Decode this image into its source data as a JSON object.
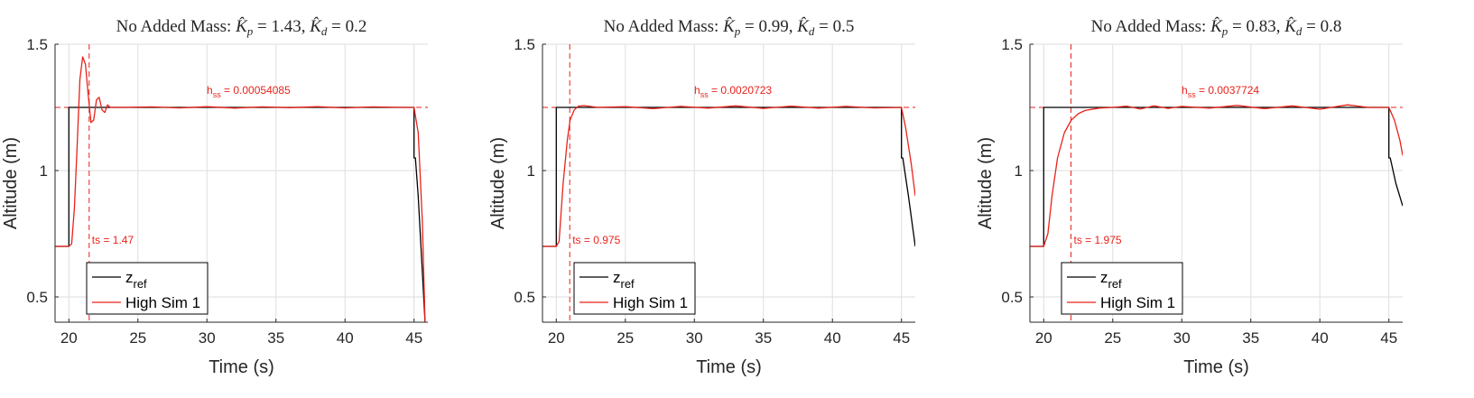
{
  "colors": {
    "reference": "#000000",
    "simulation": "#e8231b",
    "grid": "#dedede",
    "axis": "#262626"
  },
  "chart_data": [
    {
      "type": "line",
      "title": {
        "prefix": "No Added Mass: ",
        "kp_value": "1.43",
        "kd_value": "0.2"
      },
      "xlabel": "Time (s)",
      "ylabel": "Altitude (m)",
      "xlim": [
        19,
        46
      ],
      "ylim": [
        0.4,
        1.5
      ],
      "xticks": [
        "20",
        "25",
        "30",
        "35",
        "40",
        "45"
      ],
      "yticks": [
        "0.5",
        "1",
        "1.5"
      ],
      "grid": true,
      "legend_placement": "bottom-left",
      "series": [
        {
          "name": "z_ref",
          "name_main": "z",
          "name_sub": "ref",
          "points": [
            [
              19,
              0.7
            ],
            [
              20,
              0.7
            ],
            [
              20,
              1.25
            ],
            [
              45,
              1.25
            ],
            [
              45,
              1.05
            ],
            [
              45.1,
              1.05
            ],
            [
              45.3,
              0.9
            ],
            [
              45.6,
              0.6
            ],
            [
              45.8,
              0.4
            ]
          ]
        },
        {
          "name": "High Sim 1",
          "points": [
            [
              19,
              0.7
            ],
            [
              20,
              0.7
            ],
            [
              20.2,
              0.71
            ],
            [
              20.4,
              0.85
            ],
            [
              20.6,
              1.1
            ],
            [
              20.8,
              1.36
            ],
            [
              21.0,
              1.45
            ],
            [
              21.2,
              1.42
            ],
            [
              21.4,
              1.3
            ],
            [
              21.6,
              1.19
            ],
            [
              21.8,
              1.2
            ],
            [
              22.0,
              1.28
            ],
            [
              22.2,
              1.29
            ],
            [
              22.4,
              1.24
            ],
            [
              22.6,
              1.23
            ],
            [
              22.8,
              1.26
            ],
            [
              23.0,
              1.25
            ],
            [
              24,
              1.25
            ],
            [
              26,
              1.252
            ],
            [
              28,
              1.248
            ],
            [
              30,
              1.253
            ],
            [
              32,
              1.247
            ],
            [
              34,
              1.252
            ],
            [
              36,
              1.249
            ],
            [
              38,
              1.253
            ],
            [
              40,
              1.248
            ],
            [
              42,
              1.252
            ],
            [
              44,
              1.25
            ],
            [
              45,
              1.25
            ],
            [
              45.3,
              1.15
            ],
            [
              45.6,
              0.8
            ],
            [
              45.8,
              0.4
            ]
          ]
        }
      ],
      "annotations": {
        "settling_time": {
          "label": "ts = 1.47",
          "x": 21.47
        },
        "steady_state": {
          "label_main": "h",
          "label_sub": "ss",
          "label_value": " = 0.00054085",
          "y": 1.25
        }
      }
    },
    {
      "type": "line",
      "title": {
        "prefix": "No Added Mass: ",
        "kp_value": "0.99",
        "kd_value": "0.5"
      },
      "xlabel": "Time (s)",
      "ylabel": "Altitude (m)",
      "xlim": [
        19,
        46
      ],
      "ylim": [
        0.4,
        1.5
      ],
      "xticks": [
        "20",
        "25",
        "30",
        "35",
        "40",
        "45"
      ],
      "yticks": [
        "0.5",
        "1",
        "1.5"
      ],
      "grid": true,
      "legend_placement": "bottom-left",
      "series": [
        {
          "name": "z_ref",
          "name_main": "z",
          "name_sub": "ref",
          "points": [
            [
              19,
              0.7
            ],
            [
              20,
              0.7
            ],
            [
              20,
              1.25
            ],
            [
              45,
              1.25
            ],
            [
              45,
              1.05
            ],
            [
              45.1,
              1.05
            ],
            [
              45.5,
              0.9
            ],
            [
              46,
              0.7
            ]
          ]
        },
        {
          "name": "High Sim 1",
          "points": [
            [
              19,
              0.7
            ],
            [
              20,
              0.7
            ],
            [
              20.2,
              0.72
            ],
            [
              20.5,
              0.95
            ],
            [
              20.8,
              1.12
            ],
            [
              21.0,
              1.2
            ],
            [
              21.3,
              1.24
            ],
            [
              21.6,
              1.255
            ],
            [
              22,
              1.257
            ],
            [
              23,
              1.25
            ],
            [
              25,
              1.253
            ],
            [
              27,
              1.245
            ],
            [
              29,
              1.254
            ],
            [
              31,
              1.247
            ],
            [
              33,
              1.256
            ],
            [
              35,
              1.246
            ],
            [
              37,
              1.255
            ],
            [
              39,
              1.247
            ],
            [
              41,
              1.254
            ],
            [
              43,
              1.248
            ],
            [
              45,
              1.25
            ],
            [
              45.3,
              1.17
            ],
            [
              45.7,
              1.03
            ],
            [
              46,
              0.9
            ]
          ]
        }
      ],
      "annotations": {
        "settling_time": {
          "label": "ts = 0.975",
          "x": 20.975
        },
        "steady_state": {
          "label_main": "h",
          "label_sub": "ss",
          "label_value": " = 0.0020723",
          "y": 1.25
        }
      }
    },
    {
      "type": "line",
      "title": {
        "prefix": "No Added Mass: ",
        "kp_value": "0.83",
        "kd_value": "0.8"
      },
      "xlabel": "Time (s)",
      "ylabel": "Altitude (m)",
      "xlim": [
        19,
        46
      ],
      "ylim": [
        0.4,
        1.5
      ],
      "xticks": [
        "20",
        "25",
        "30",
        "35",
        "40",
        "45"
      ],
      "yticks": [
        "0.5",
        "1",
        "1.5"
      ],
      "grid": true,
      "legend_placement": "bottom-left",
      "series": [
        {
          "name": "z_ref",
          "name_main": "z",
          "name_sub": "ref",
          "points": [
            [
              19,
              0.7
            ],
            [
              20,
              0.7
            ],
            [
              20,
              1.25
            ],
            [
              45,
              1.25
            ],
            [
              45,
              1.05
            ],
            [
              45.1,
              1.05
            ],
            [
              45.5,
              0.95
            ],
            [
              46,
              0.86
            ]
          ]
        },
        {
          "name": "High Sim 1",
          "points": [
            [
              19,
              0.7
            ],
            [
              20,
              0.7
            ],
            [
              20.3,
              0.75
            ],
            [
              20.6,
              0.9
            ],
            [
              21.0,
              1.05
            ],
            [
              21.5,
              1.15
            ],
            [
              22.0,
              1.2
            ],
            [
              22.5,
              1.225
            ],
            [
              23,
              1.238
            ],
            [
              24,
              1.247
            ],
            [
              25,
              1.25
            ],
            [
              26,
              1.255
            ],
            [
              27,
              1.244
            ],
            [
              28,
              1.256
            ],
            [
              29,
              1.246
            ],
            [
              30,
              1.254
            ],
            [
              32,
              1.247
            ],
            [
              34,
              1.258
            ],
            [
              36,
              1.245
            ],
            [
              38,
              1.256
            ],
            [
              40,
              1.243
            ],
            [
              42,
              1.26
            ],
            [
              43.5,
              1.25
            ],
            [
              45,
              1.25
            ],
            [
              45.4,
              1.2
            ],
            [
              45.8,
              1.12
            ],
            [
              46,
              1.06
            ]
          ]
        }
      ],
      "annotations": {
        "settling_time": {
          "label": "ts = 1.975",
          "x": 21.975
        },
        "steady_state": {
          "label_main": "h",
          "label_sub": "ss",
          "label_value": " = 0.0037724",
          "y": 1.25
        }
      }
    }
  ]
}
